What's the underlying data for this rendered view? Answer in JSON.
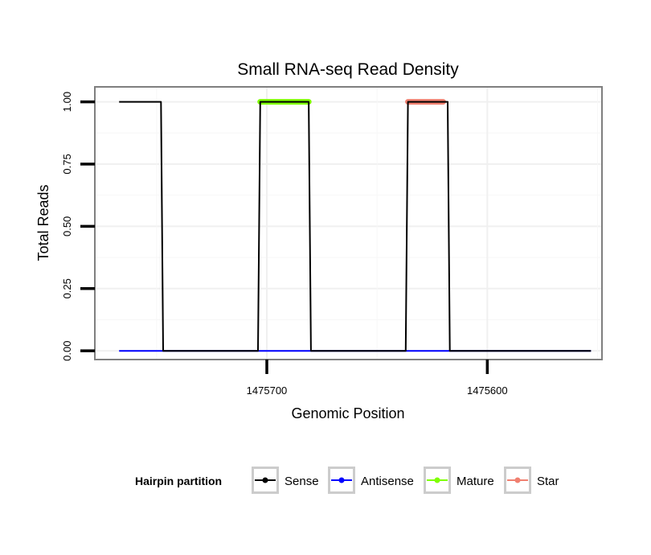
{
  "chart_data": {
    "type": "line",
    "title": "Small RNA-seq Read Density",
    "xlabel": "Genomic Position",
    "ylabel": "Total Reads",
    "x_reversed": true,
    "xlim": [
      1475778,
      1475548
    ],
    "ylim": [
      -0.035,
      1.06
    ],
    "x_ticks": [
      1475700,
      1475600
    ],
    "x_tick_labels": [
      "1475700",
      "1475600"
    ],
    "y_ticks": [
      0,
      0.25,
      0.5,
      0.75,
      1.0
    ],
    "y_tick_labels": [
      "0.00",
      "0.25",
      "0.50",
      "0.75",
      "1.00"
    ],
    "grid": true,
    "legend": {
      "title": "Hairpin partition",
      "position": "bottom",
      "entries": [
        "Sense",
        "Antisense",
        "Mature",
        "Star"
      ]
    },
    "series": [
      {
        "name": "Sense",
        "color": "#000000",
        "style": "line",
        "x": [
          1475767,
          1475748,
          1475747,
          1475704,
          1475703,
          1475681,
          1475680,
          1475637,
          1475636,
          1475618,
          1475617,
          1475553
        ],
        "y": [
          1,
          1,
          0,
          0,
          1,
          1,
          0,
          0,
          1,
          1,
          0,
          0
        ]
      },
      {
        "name": "Antisense",
        "color": "#0000ff",
        "style": "line",
        "x": [
          1475767,
          1475553
        ],
        "y": [
          0,
          0
        ]
      },
      {
        "name": "Mature",
        "color": "#7fff00",
        "style": "points",
        "x_range": [
          1475703,
          1475681
        ],
        "y": 1
      },
      {
        "name": "Star",
        "color": "#f08070",
        "style": "points",
        "x_range": [
          1475636,
          1475620
        ],
        "y": 1
      }
    ]
  }
}
